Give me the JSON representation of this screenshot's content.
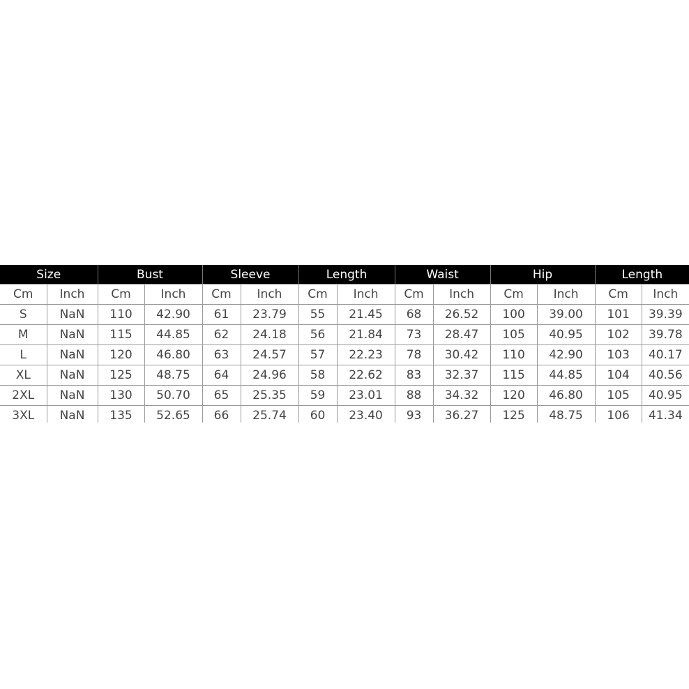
{
  "table": {
    "groups": [
      "Size",
      "Bust",
      "Sleeve",
      "Length",
      "Waist",
      "Hip",
      "Length"
    ],
    "subheaders": [
      "Cm",
      "Inch",
      "Cm",
      "Inch",
      "Cm",
      "Inch",
      "Cm",
      "Inch",
      "Cm",
      "Inch",
      "Cm",
      "Inch",
      "Cm",
      "Inch"
    ],
    "rows": [
      [
        "S",
        "NaN",
        "110",
        "42.90",
        "61",
        "23.79",
        "55",
        "21.45",
        "68",
        "26.52",
        "100",
        "39.00",
        "101",
        "39.39"
      ],
      [
        "M",
        "NaN",
        "115",
        "44.85",
        "62",
        "24.18",
        "56",
        "21.84",
        "73",
        "28.47",
        "105",
        "40.95",
        "102",
        "39.78"
      ],
      [
        "L",
        "NaN",
        "120",
        "46.80",
        "63",
        "24.57",
        "57",
        "22.23",
        "78",
        "30.42",
        "110",
        "42.90",
        "103",
        "40.17"
      ],
      [
        "XL",
        "NaN",
        "125",
        "48.75",
        "64",
        "24.96",
        "58",
        "22.62",
        "83",
        "32.37",
        "115",
        "44.85",
        "104",
        "40.56"
      ],
      [
        "2XL",
        "NaN",
        "130",
        "50.70",
        "65",
        "25.35",
        "59",
        "23.01",
        "88",
        "34.32",
        "120",
        "46.80",
        "105",
        "40.95"
      ],
      [
        "3XL",
        "NaN",
        "135",
        "52.65",
        "66",
        "25.74",
        "60",
        "23.40",
        "93",
        "36.27",
        "125",
        "48.75",
        "106",
        "41.34"
      ]
    ]
  }
}
